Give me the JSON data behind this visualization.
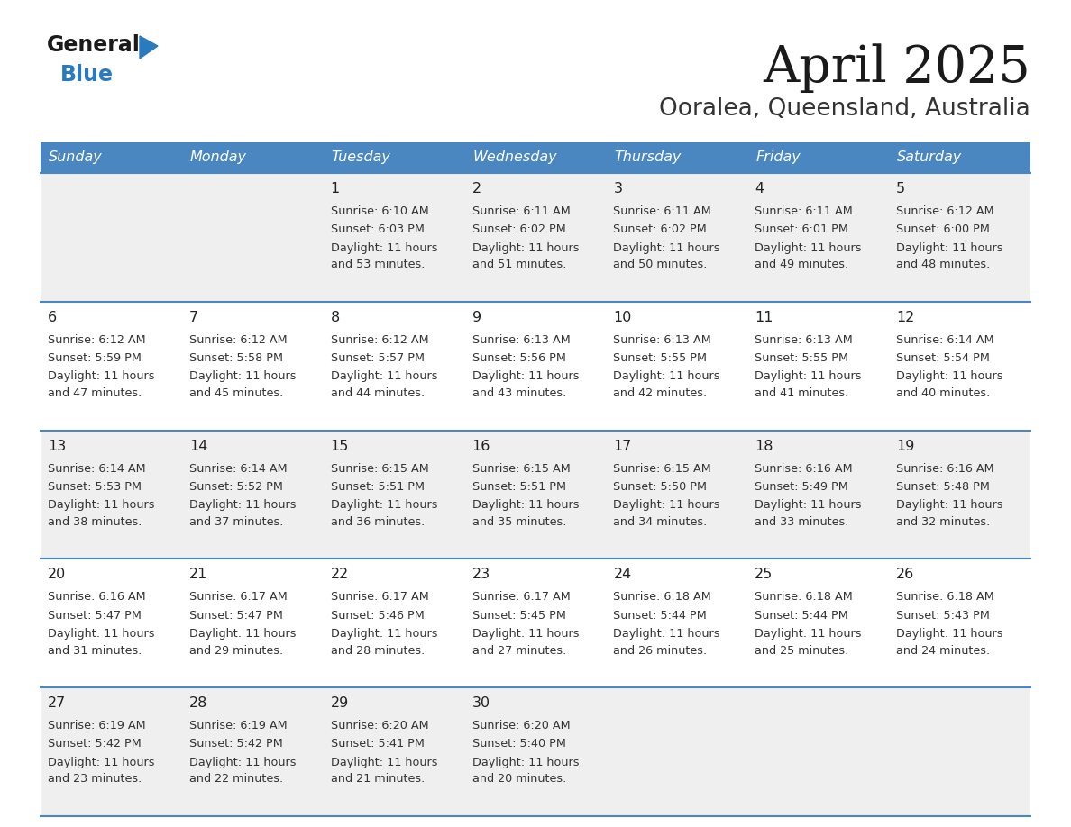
{
  "title": "April 2025",
  "subtitle": "Ooralea, Queensland, Australia",
  "header_bg": "#4a86c0",
  "header_text": "#ffffff",
  "row_bg_light": "#efefef",
  "row_bg_white": "#ffffff",
  "text_color": "#333333",
  "day_names": [
    "Sunday",
    "Monday",
    "Tuesday",
    "Wednesday",
    "Thursday",
    "Friday",
    "Saturday"
  ],
  "days": [
    {
      "day": 1,
      "col": 2,
      "row": 0,
      "sunrise": "6:10 AM",
      "sunset": "6:03 PM",
      "daylight_h": "11 hours",
      "daylight_m": "53 minutes."
    },
    {
      "day": 2,
      "col": 3,
      "row": 0,
      "sunrise": "6:11 AM",
      "sunset": "6:02 PM",
      "daylight_h": "11 hours",
      "daylight_m": "51 minutes."
    },
    {
      "day": 3,
      "col": 4,
      "row": 0,
      "sunrise": "6:11 AM",
      "sunset": "6:02 PM",
      "daylight_h": "11 hours",
      "daylight_m": "50 minutes."
    },
    {
      "day": 4,
      "col": 5,
      "row": 0,
      "sunrise": "6:11 AM",
      "sunset": "6:01 PM",
      "daylight_h": "11 hours",
      "daylight_m": "49 minutes."
    },
    {
      "day": 5,
      "col": 6,
      "row": 0,
      "sunrise": "6:12 AM",
      "sunset": "6:00 PM",
      "daylight_h": "11 hours",
      "daylight_m": "48 minutes."
    },
    {
      "day": 6,
      "col": 0,
      "row": 1,
      "sunrise": "6:12 AM",
      "sunset": "5:59 PM",
      "daylight_h": "11 hours",
      "daylight_m": "47 minutes."
    },
    {
      "day": 7,
      "col": 1,
      "row": 1,
      "sunrise": "6:12 AM",
      "sunset": "5:58 PM",
      "daylight_h": "11 hours",
      "daylight_m": "45 minutes."
    },
    {
      "day": 8,
      "col": 2,
      "row": 1,
      "sunrise": "6:12 AM",
      "sunset": "5:57 PM",
      "daylight_h": "11 hours",
      "daylight_m": "44 minutes."
    },
    {
      "day": 9,
      "col": 3,
      "row": 1,
      "sunrise": "6:13 AM",
      "sunset": "5:56 PM",
      "daylight_h": "11 hours",
      "daylight_m": "43 minutes."
    },
    {
      "day": 10,
      "col": 4,
      "row": 1,
      "sunrise": "6:13 AM",
      "sunset": "5:55 PM",
      "daylight_h": "11 hours",
      "daylight_m": "42 minutes."
    },
    {
      "day": 11,
      "col": 5,
      "row": 1,
      "sunrise": "6:13 AM",
      "sunset": "5:55 PM",
      "daylight_h": "11 hours",
      "daylight_m": "41 minutes."
    },
    {
      "day": 12,
      "col": 6,
      "row": 1,
      "sunrise": "6:14 AM",
      "sunset": "5:54 PM",
      "daylight_h": "11 hours",
      "daylight_m": "40 minutes."
    },
    {
      "day": 13,
      "col": 0,
      "row": 2,
      "sunrise": "6:14 AM",
      "sunset": "5:53 PM",
      "daylight_h": "11 hours",
      "daylight_m": "38 minutes."
    },
    {
      "day": 14,
      "col": 1,
      "row": 2,
      "sunrise": "6:14 AM",
      "sunset": "5:52 PM",
      "daylight_h": "11 hours",
      "daylight_m": "37 minutes."
    },
    {
      "day": 15,
      "col": 2,
      "row": 2,
      "sunrise": "6:15 AM",
      "sunset": "5:51 PM",
      "daylight_h": "11 hours",
      "daylight_m": "36 minutes."
    },
    {
      "day": 16,
      "col": 3,
      "row": 2,
      "sunrise": "6:15 AM",
      "sunset": "5:51 PM",
      "daylight_h": "11 hours",
      "daylight_m": "35 minutes."
    },
    {
      "day": 17,
      "col": 4,
      "row": 2,
      "sunrise": "6:15 AM",
      "sunset": "5:50 PM",
      "daylight_h": "11 hours",
      "daylight_m": "34 minutes."
    },
    {
      "day": 18,
      "col": 5,
      "row": 2,
      "sunrise": "6:16 AM",
      "sunset": "5:49 PM",
      "daylight_h": "11 hours",
      "daylight_m": "33 minutes."
    },
    {
      "day": 19,
      "col": 6,
      "row": 2,
      "sunrise": "6:16 AM",
      "sunset": "5:48 PM",
      "daylight_h": "11 hours",
      "daylight_m": "32 minutes."
    },
    {
      "day": 20,
      "col": 0,
      "row": 3,
      "sunrise": "6:16 AM",
      "sunset": "5:47 PM",
      "daylight_h": "11 hours",
      "daylight_m": "31 minutes."
    },
    {
      "day": 21,
      "col": 1,
      "row": 3,
      "sunrise": "6:17 AM",
      "sunset": "5:47 PM",
      "daylight_h": "11 hours",
      "daylight_m": "29 minutes."
    },
    {
      "day": 22,
      "col": 2,
      "row": 3,
      "sunrise": "6:17 AM",
      "sunset": "5:46 PM",
      "daylight_h": "11 hours",
      "daylight_m": "28 minutes."
    },
    {
      "day": 23,
      "col": 3,
      "row": 3,
      "sunrise": "6:17 AM",
      "sunset": "5:45 PM",
      "daylight_h": "11 hours",
      "daylight_m": "27 minutes."
    },
    {
      "day": 24,
      "col": 4,
      "row": 3,
      "sunrise": "6:18 AM",
      "sunset": "5:44 PM",
      "daylight_h": "11 hours",
      "daylight_m": "26 minutes."
    },
    {
      "day": 25,
      "col": 5,
      "row": 3,
      "sunrise": "6:18 AM",
      "sunset": "5:44 PM",
      "daylight_h": "11 hours",
      "daylight_m": "25 minutes."
    },
    {
      "day": 26,
      "col": 6,
      "row": 3,
      "sunrise": "6:18 AM",
      "sunset": "5:43 PM",
      "daylight_h": "11 hours",
      "daylight_m": "24 minutes."
    },
    {
      "day": 27,
      "col": 0,
      "row": 4,
      "sunrise": "6:19 AM",
      "sunset": "5:42 PM",
      "daylight_h": "11 hours",
      "daylight_m": "23 minutes."
    },
    {
      "day": 28,
      "col": 1,
      "row": 4,
      "sunrise": "6:19 AM",
      "sunset": "5:42 PM",
      "daylight_h": "11 hours",
      "daylight_m": "22 minutes."
    },
    {
      "day": 29,
      "col": 2,
      "row": 4,
      "sunrise": "6:20 AM",
      "sunset": "5:41 PM",
      "daylight_h": "11 hours",
      "daylight_m": "21 minutes."
    },
    {
      "day": 30,
      "col": 3,
      "row": 4,
      "sunrise": "6:20 AM",
      "sunset": "5:40 PM",
      "daylight_h": "11 hours",
      "daylight_m": "20 minutes."
    }
  ]
}
